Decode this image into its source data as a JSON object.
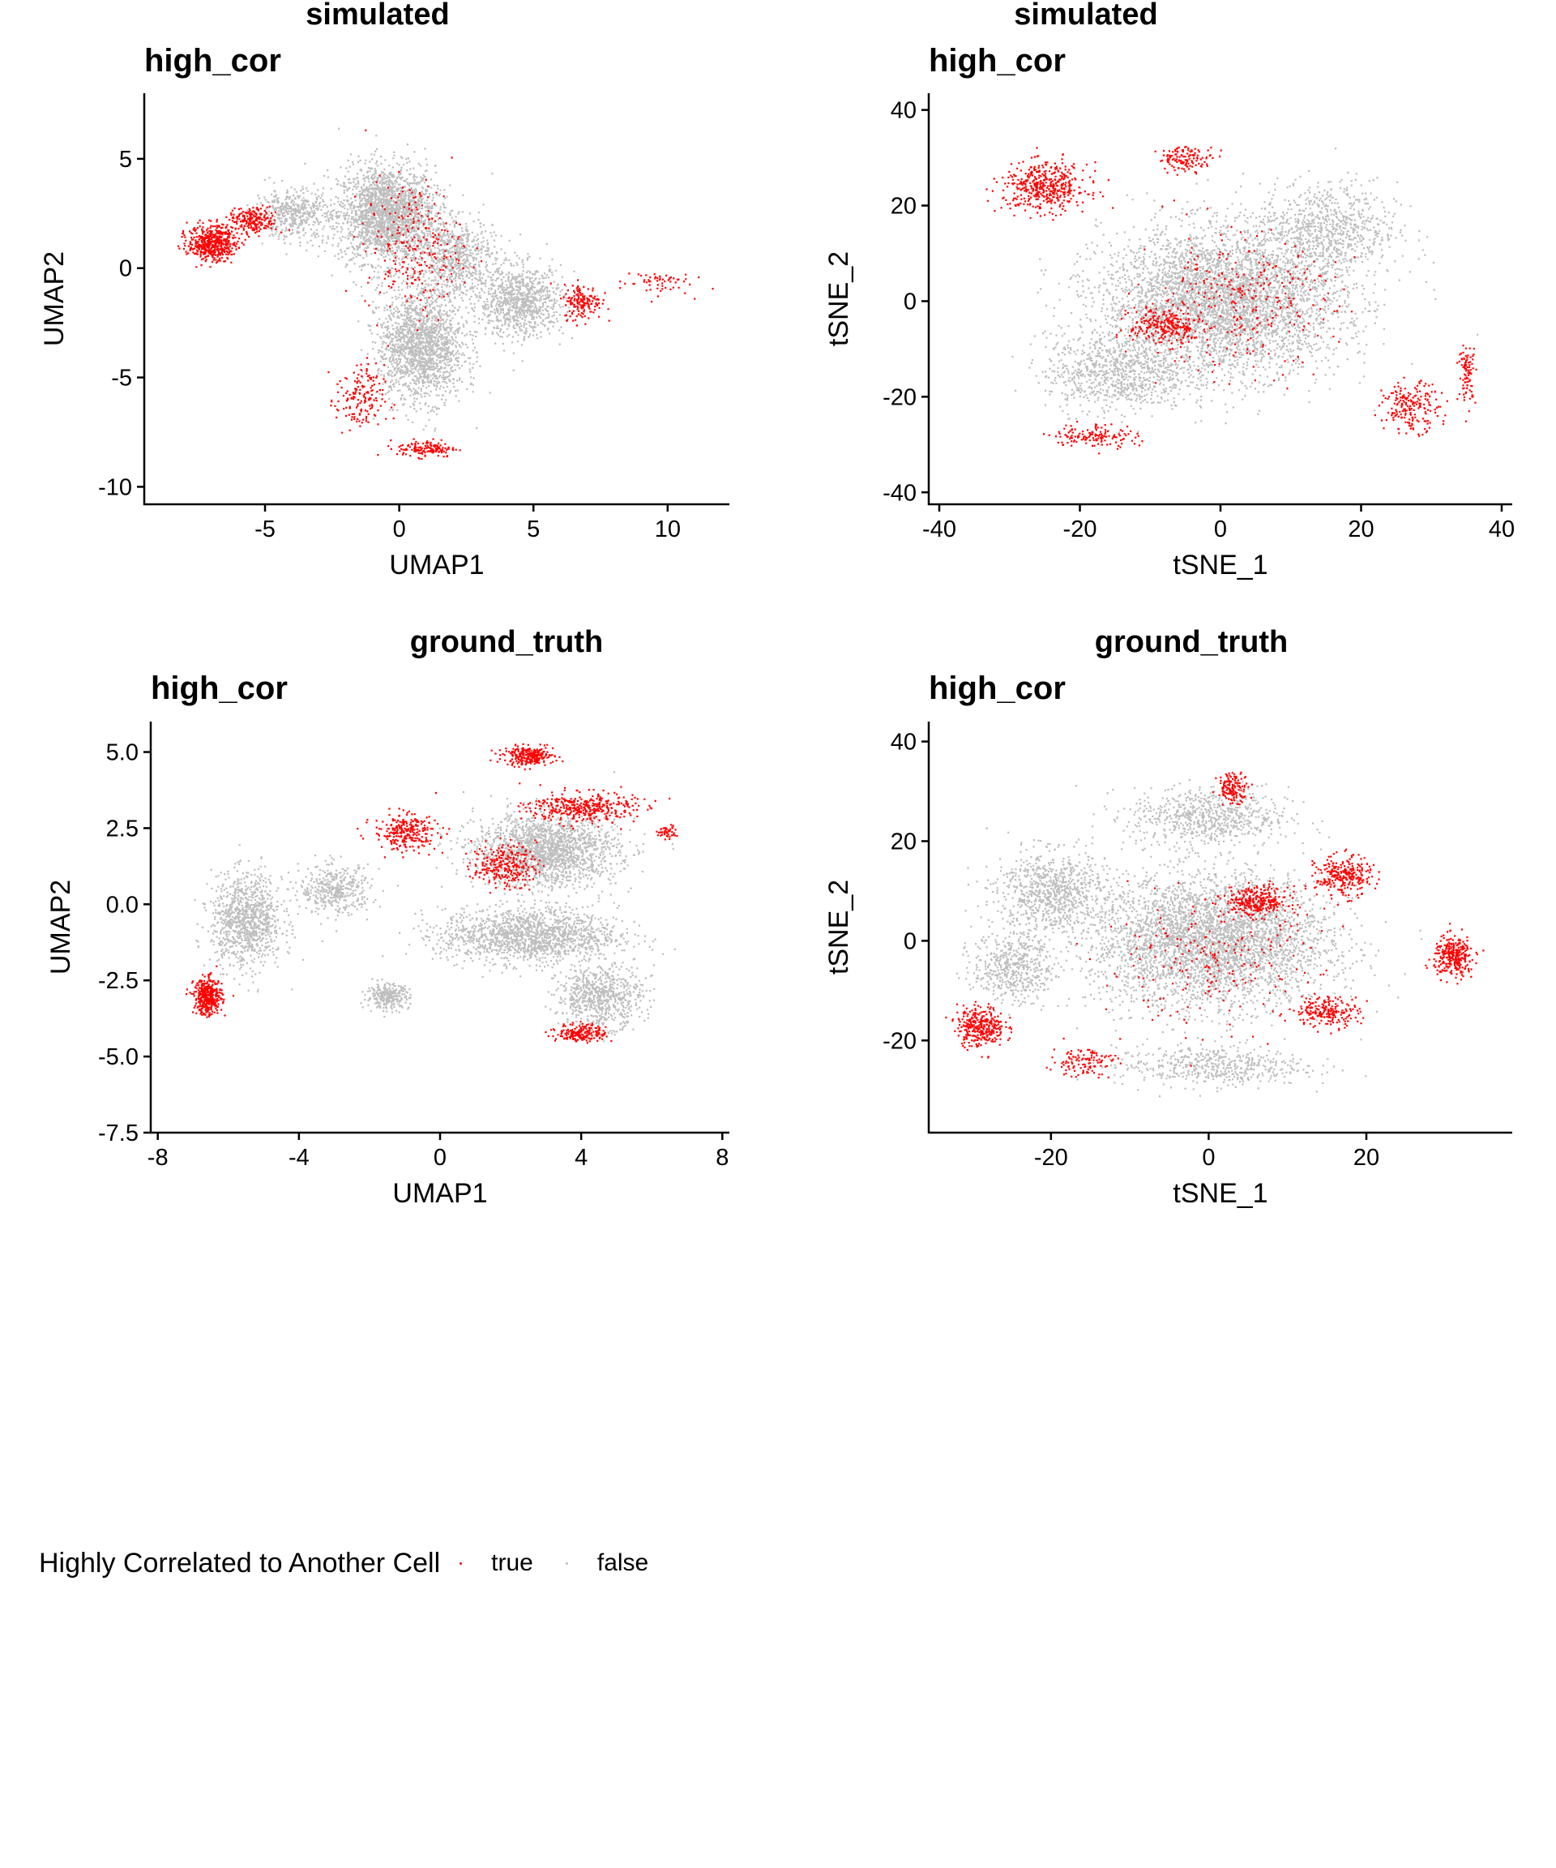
{
  "legend": {
    "title": "Highly Correlated to Another Cell",
    "items": [
      {
        "label": "true",
        "color": "#FF0000"
      },
      {
        "label": "false",
        "color": "#BEBEBE"
      }
    ]
  },
  "colors": {
    "true": "#FF0000",
    "false": "#BEBEBE"
  },
  "chart_data": [
    {
      "type": "scatter",
      "title": "simulated",
      "subtitle": "high_cor",
      "xlabel": "UMAP1",
      "ylabel": "UMAP2",
      "xlim": [
        -9.5,
        12.3
      ],
      "ylim": [
        -10.8,
        8.0
      ],
      "xticks": [
        -5,
        0,
        5,
        10
      ],
      "yticks": [
        -10,
        -5,
        0,
        5
      ],
      "xtick_labels": [
        "-5",
        "0",
        "5",
        "10"
      ],
      "ytick_labels": [
        "-10",
        "-5",
        "0",
        "5"
      ],
      "legend": "bottom-left",
      "series": [
        {
          "name": "false",
          "regions": [
            {
              "x": -0.5,
              "y": 2.5,
              "sx": 1.8,
              "sy": 2.2,
              "n": 2200
            },
            {
              "x": 0.8,
              "y": -3.5,
              "sx": 1.6,
              "sy": 2.5,
              "n": 1700
            },
            {
              "x": -4.0,
              "y": 2.5,
              "sx": 1.4,
              "sy": 1.1,
              "n": 450
            },
            {
              "x": 4.5,
              "y": -1.5,
              "sx": 1.6,
              "sy": 1.6,
              "n": 900
            },
            {
              "x": 2.0,
              "y": 0.5,
              "sx": 1.5,
              "sy": 1.8,
              "n": 700
            }
          ]
        },
        {
          "name": "true",
          "regions": [
            {
              "x": -7.0,
              "y": 1.2,
              "sx": 0.9,
              "sy": 0.8,
              "n": 500
            },
            {
              "x": -5.5,
              "y": 2.2,
              "sx": 0.9,
              "sy": 0.6,
              "n": 220
            },
            {
              "x": -1.5,
              "y": -6.0,
              "sx": 0.9,
              "sy": 1.6,
              "n": 160
            },
            {
              "x": 1.0,
              "y": -8.2,
              "sx": 1.1,
              "sy": 0.4,
              "n": 140
            },
            {
              "x": 6.8,
              "y": -1.5,
              "sx": 0.7,
              "sy": 0.8,
              "n": 160
            },
            {
              "x": 0.5,
              "y": 1.0,
              "sx": 1.8,
              "sy": 3.0,
              "n": 260
            },
            {
              "x": 9.5,
              "y": -0.6,
              "sx": 1.3,
              "sy": 0.6,
              "n": 60
            }
          ]
        }
      ]
    },
    {
      "type": "scatter",
      "title": "simulated",
      "subtitle": "high_cor",
      "xlabel": "tSNE_1",
      "ylabel": "tSNE_2",
      "xlim": [
        -41.5,
        41.5
      ],
      "ylim": [
        -42.5,
        43.5
      ],
      "xticks": [
        -40,
        -20,
        0,
        20,
        40
      ],
      "yticks": [
        -40,
        -20,
        0,
        20,
        40
      ],
      "xtick_labels": [
        "-40",
        "-20",
        "0",
        "20",
        "40"
      ],
      "ytick_labels": [
        "-40",
        "-20",
        "0",
        "20",
        "40"
      ],
      "legend": "bottom-left",
      "series": [
        {
          "name": "false",
          "regions": [
            {
              "x": 0.0,
              "y": 0.0,
              "sx": 17.0,
              "sy": 15.0,
              "n": 4200
            },
            {
              "x": 15.0,
              "y": 15.0,
              "sx": 10.0,
              "sy": 10.0,
              "n": 800
            },
            {
              "x": -15.0,
              "y": -15.0,
              "sx": 10.0,
              "sy": 8.0,
              "n": 800
            }
          ]
        },
        {
          "name": "true",
          "regions": [
            {
              "x": -25.0,
              "y": 24.0,
              "sx": 6.0,
              "sy": 5.0,
              "n": 450
            },
            {
              "x": -8.0,
              "y": -5.0,
              "sx": 5.0,
              "sy": 4.0,
              "n": 240
            },
            {
              "x": 27.0,
              "y": -22.0,
              "sx": 4.0,
              "sy": 5.0,
              "n": 200
            },
            {
              "x": -5.0,
              "y": 30.0,
              "sx": 4.0,
              "sy": 2.5,
              "n": 130
            },
            {
              "x": -18.0,
              "y": -28.0,
              "sx": 6.0,
              "sy": 2.5,
              "n": 140
            },
            {
              "x": 2.0,
              "y": 0.0,
              "sx": 14.0,
              "sy": 14.0,
              "n": 300
            },
            {
              "x": 35.0,
              "y": -15.0,
              "sx": 1.2,
              "sy": 6.0,
              "n": 90
            }
          ]
        }
      ]
    },
    {
      "type": "scatter",
      "title": "ground_truth",
      "subtitle": "high_cor",
      "xlabel": "UMAP1",
      "ylabel": "UMAP2",
      "xlim": [
        -8.2,
        8.2
      ],
      "ylim": [
        -7.5,
        6.0
      ],
      "xticks": [
        -8,
        -4,
        0,
        4,
        8
      ],
      "yticks": [
        -7.5,
        -5.0,
        -2.5,
        0.0,
        2.5,
        5.0
      ],
      "xtick_labels": [
        "-8",
        "-4",
        "0",
        "4",
        "8"
      ],
      "ytick_labels": [
        "-7.5",
        "-5.0",
        "-2.5",
        "0.0",
        "2.5",
        "5.0"
      ],
      "legend": "bottom-left",
      "series": [
        {
          "name": "false",
          "regions": [
            {
              "x": 3.0,
              "y": 1.8,
              "sx": 2.0,
              "sy": 1.2,
              "n": 1800
            },
            {
              "x": 2.5,
              "y": -1.0,
              "sx": 2.5,
              "sy": 0.9,
              "n": 1500
            },
            {
              "x": -5.5,
              "y": -0.5,
              "sx": 1.0,
              "sy": 1.5,
              "n": 1000
            },
            {
              "x": 4.5,
              "y": -3.0,
              "sx": 1.2,
              "sy": 1.0,
              "n": 700
            },
            {
              "x": -1.5,
              "y": -3.0,
              "sx": 0.6,
              "sy": 0.4,
              "n": 280
            },
            {
              "x": -3.0,
              "y": 0.5,
              "sx": 1.0,
              "sy": 0.8,
              "n": 400
            }
          ]
        },
        {
          "name": "true",
          "regions": [
            {
              "x": -6.6,
              "y": -3.0,
              "sx": 0.4,
              "sy": 0.6,
              "n": 380
            },
            {
              "x": 2.5,
              "y": 4.9,
              "sx": 0.7,
              "sy": 0.3,
              "n": 260
            },
            {
              "x": 4.0,
              "y": 3.2,
              "sx": 1.5,
              "sy": 0.5,
              "n": 380
            },
            {
              "x": -1.0,
              "y": 2.4,
              "sx": 0.9,
              "sy": 0.6,
              "n": 260
            },
            {
              "x": 1.8,
              "y": 1.3,
              "sx": 0.9,
              "sy": 0.7,
              "n": 260
            },
            {
              "x": 4.0,
              "y": -4.2,
              "sx": 0.7,
              "sy": 0.3,
              "n": 200
            },
            {
              "x": 6.4,
              "y": 2.4,
              "sx": 0.3,
              "sy": 0.2,
              "n": 50
            }
          ]
        }
      ]
    },
    {
      "type": "scatter",
      "title": "ground_truth",
      "subtitle": "high_cor",
      "xlabel": "tSNE_1",
      "ylabel": "tSNE_2",
      "xlim": [
        -35.5,
        38.5
      ],
      "ylim": [
        -38.5,
        44.0
      ],
      "xticks": [
        -20,
        0,
        20
      ],
      "yticks": [
        -20,
        0,
        20,
        40
      ],
      "xtick_labels": [
        "-20",
        "0",
        "20"
      ],
      "ytick_labels": [
        "-20",
        "0",
        "20",
        "40"
      ],
      "legend": "bottom-left",
      "series": [
        {
          "name": "false",
          "regions": [
            {
              "x": 0.0,
              "y": 0.0,
              "sx": 15.0,
              "sy": 13.0,
              "n": 3800
            },
            {
              "x": -20.0,
              "y": 10.0,
              "sx": 7.0,
              "sy": 8.0,
              "n": 800
            },
            {
              "x": -25.0,
              "y": -5.0,
              "sx": 5.0,
              "sy": 7.0,
              "n": 500
            },
            {
              "x": 0.0,
              "y": 25.0,
              "sx": 10.0,
              "sy": 6.0,
              "n": 700
            },
            {
              "x": 0.0,
              "y": -25.0,
              "sx": 12.0,
              "sy": 4.0,
              "n": 500
            }
          ]
        },
        {
          "name": "true",
          "regions": [
            {
              "x": -29.0,
              "y": -17.0,
              "sx": 3.0,
              "sy": 4.0,
              "n": 320
            },
            {
              "x": 31.0,
              "y": -3.0,
              "sx": 2.5,
              "sy": 4.0,
              "n": 300
            },
            {
              "x": 6.0,
              "y": 8.0,
              "sx": 4.0,
              "sy": 3.0,
              "n": 300
            },
            {
              "x": 17.0,
              "y": 13.0,
              "sx": 3.5,
              "sy": 4.0,
              "n": 280
            },
            {
              "x": 3.0,
              "y": 31.0,
              "sx": 2.0,
              "sy": 3.0,
              "n": 140
            },
            {
              "x": 15.0,
              "y": -14.0,
              "sx": 4.0,
              "sy": 3.0,
              "n": 200
            },
            {
              "x": -16.0,
              "y": -24.0,
              "sx": 4.0,
              "sy": 3.0,
              "n": 120
            },
            {
              "x": 0.0,
              "y": -5.0,
              "sx": 14.0,
              "sy": 12.0,
              "n": 220
            }
          ]
        }
      ]
    }
  ]
}
